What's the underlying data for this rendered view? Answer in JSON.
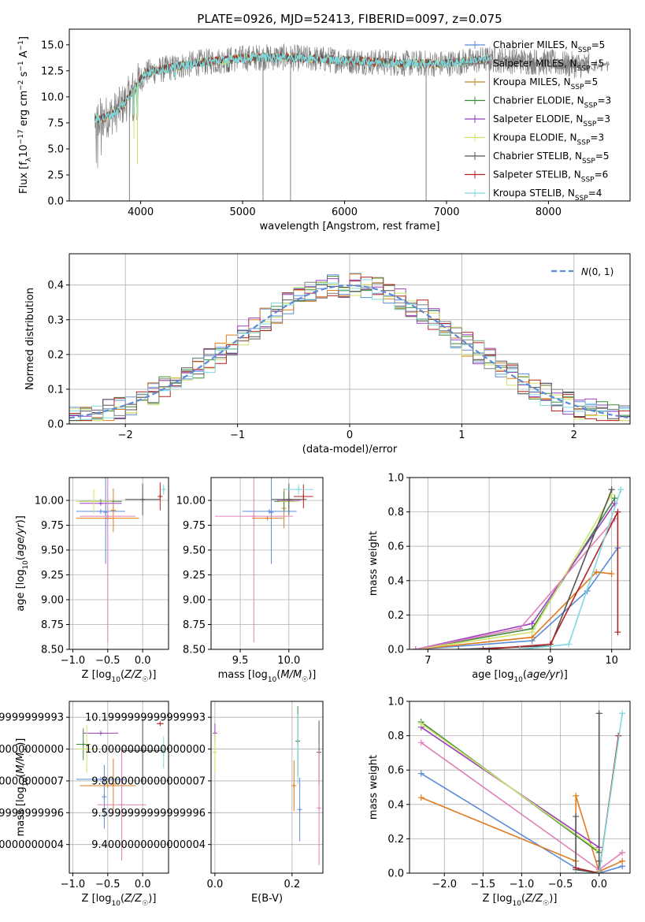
{
  "colors": {
    "blue": "#5b8bd9",
    "orange": "#e07b1f",
    "gold": "#b98a24",
    "green": "#3c8c3c",
    "purple": "#9b3ebf",
    "lime": "#cfe36a",
    "dark": "#555555",
    "red": "#b22222",
    "cyan": "#7fd8dc",
    "pink": "#e080b8",
    "gray": "#808080",
    "dashed": "#5b8bd9"
  },
  "chart_data": [
    {
      "id": "spectrum",
      "type": "line",
      "title": "PLATE=0926, MJD=52413, FIBERID=0097, z=0.075",
      "xlabel": "wavelength [Angstrom, rest frame]",
      "ylabel": "Flux [f_λ 10^-17 erg cm^-2 s^-1 A^-1]",
      "xlim": [
        3300,
        8800
      ],
      "ylim": [
        0,
        16.5
      ],
      "xticks": [
        4000,
        5000,
        6000,
        7000,
        8000
      ],
      "yticks": [
        0.0,
        2.5,
        5.0,
        7.5,
        10.0,
        12.5,
        15.0
      ],
      "legend": [
        {
          "label": "Chabrier MILES, N_SSP=5",
          "color": "blue"
        },
        {
          "label": "Salpeter MILES, N_SSP=5",
          "color": "gray"
        },
        {
          "label": "Kroupa MILES, N_SSP=5",
          "color": "gold"
        },
        {
          "label": "Chabrier ELODIE, N_SSP=3",
          "color": "green"
        },
        {
          "label": "Salpeter ELODIE, N_SSP=3",
          "color": "purple"
        },
        {
          "label": "Kroupa ELODIE, N_SSP=3",
          "color": "lime"
        },
        {
          "label": "Chabrier STELIB, N_SSP=5",
          "color": "dark"
        },
        {
          "label": "Salpeter STELIB, N_SSP=6",
          "color": "red"
        },
        {
          "label": "Kroupa STELIB, N_SSP=4",
          "color": "cyan"
        }
      ],
      "legend_position": "upper-right",
      "data_continuum": [
        [
          3550,
          7.8
        ],
        [
          3650,
          8.0
        ],
        [
          3750,
          8.5
        ],
        [
          3850,
          9.5
        ],
        [
          3950,
          11.0
        ],
        [
          4050,
          12.3
        ],
        [
          4200,
          12.6
        ],
        [
          4400,
          13.0
        ],
        [
          4600,
          13.3
        ],
        [
          4800,
          13.5
        ],
        [
          5000,
          13.7
        ],
        [
          5200,
          13.8
        ],
        [
          5400,
          13.8
        ],
        [
          5600,
          13.7
        ],
        [
          5800,
          13.6
        ],
        [
          6000,
          13.5
        ],
        [
          6200,
          13.4
        ],
        [
          6400,
          13.3
        ],
        [
          6600,
          13.2
        ],
        [
          6800,
          13.2
        ],
        [
          7000,
          13.2
        ],
        [
          7200,
          13.4
        ],
        [
          7400,
          13.6
        ],
        [
          7600,
          13.5
        ],
        [
          7800,
          13.4
        ],
        [
          8000,
          13.3
        ],
        [
          8200,
          13.1
        ],
        [
          8400,
          13.0
        ]
      ],
      "absorption_lines": [
        [
          3933,
          6.0
        ],
        [
          3968,
          3.5
        ],
        [
          3890,
          0
        ],
        [
          5200,
          0
        ],
        [
          5470,
          0
        ],
        [
          6800,
          0
        ],
        [
          7420,
          0
        ]
      ]
    },
    {
      "id": "residual-histogram",
      "type": "histogram",
      "xlabel": "(data-model)/error",
      "ylabel": "Normed distribution",
      "xlim": [
        -2.5,
        2.5
      ],
      "ylim": [
        0,
        0.49
      ],
      "xticks": [
        -2,
        -1,
        0,
        1,
        2
      ],
      "yticks": [
        0.0,
        0.1,
        0.2,
        0.3,
        0.4
      ],
      "legend": [
        {
          "label": "N(0,1)",
          "color": "dashed",
          "style": "dashed"
        }
      ],
      "legend_position": "upper-right",
      "bin_width": 0.1,
      "series_colors": [
        "blue",
        "orange",
        "green",
        "purple",
        "lime",
        "dark",
        "red",
        "cyan",
        "gray"
      ]
    },
    {
      "id": "age-vs-z",
      "type": "errorbar",
      "xlabel": "Z [log10(Z/Z☉)]",
      "ylabel": "age  [log10(age/yr)]",
      "xlim": [
        -1.05,
        0.37
      ],
      "ylim": [
        8.5,
        10.23
      ],
      "xticks": [
        -1.0,
        -0.5,
        0.0
      ],
      "yticks": [
        8.5,
        8.75,
        9.0,
        9.25,
        9.5,
        9.75,
        10.0
      ],
      "points": [
        {
          "x": -0.6,
          "y": 9.89,
          "xerr": 0.35,
          "yerr": 0.0,
          "color": "blue"
        },
        {
          "x": -0.53,
          "y": 9.88,
          "xerr": 0.0,
          "yerr": 0.52,
          "color": "blue"
        },
        {
          "x": -0.5,
          "y": 9.82,
          "xerr": 0.45,
          "yerr": 0.0,
          "color": "orange"
        },
        {
          "x": -0.42,
          "y": 9.9,
          "xerr": 0.0,
          "yerr": 0.22,
          "color": "orange"
        },
        {
          "x": -0.6,
          "y": 9.99,
          "xerr": 0.3,
          "yerr": 0.0,
          "color": "green"
        },
        {
          "x": -0.6,
          "y": 9.97,
          "xerr": 0.3,
          "yerr": 0.0,
          "color": "purple"
        },
        {
          "x": -0.7,
          "y": 9.99,
          "xerr": 0.25,
          "yerr": 0.12,
          "color": "lime"
        },
        {
          "x": -0.5,
          "y": 9.84,
          "xerr": 0.4,
          "yerr": 1.27,
          "color": "pink"
        },
        {
          "x": 0.0,
          "y": 10.01,
          "xerr": 0.25,
          "yerr": 0.16,
          "color": "dark"
        },
        {
          "x": 0.25,
          "y": 10.04,
          "xerr": 0.02,
          "yerr": 0.14,
          "color": "red"
        },
        {
          "x": 0.3,
          "y": 10.11,
          "xerr": 0.02,
          "yerr": 0.05,
          "color": "cyan"
        }
      ]
    },
    {
      "id": "age-vs-mass",
      "type": "errorbar",
      "xlabel": "mass [log10(M/M☉)]",
      "ylabel": "",
      "xlim": [
        9.2,
        10.35
      ],
      "ylim": [
        8.5,
        10.23
      ],
      "xticks": [
        9.5,
        10.0
      ],
      "yticks": [
        8.5,
        8.75,
        9.0,
        9.25,
        9.5,
        9.75,
        10.0
      ],
      "points": [
        {
          "x": 9.8,
          "y": 9.89,
          "xerr": 0.28,
          "yerr": 0.0,
          "color": "blue"
        },
        {
          "x": 9.82,
          "y": 9.88,
          "xerr": 0.0,
          "yerr": 0.52,
          "color": "blue"
        },
        {
          "x": 9.78,
          "y": 9.82,
          "xerr": 0.16,
          "yerr": 0.0,
          "color": "orange"
        },
        {
          "x": 9.95,
          "y": 9.92,
          "xerr": 0.0,
          "yerr": 0.2,
          "color": "orange"
        },
        {
          "x": 9.95,
          "y": 9.99,
          "xerr": 0.1,
          "yerr": 0.1,
          "color": "green"
        },
        {
          "x": 10.0,
          "y": 10.0,
          "xerr": 0.12,
          "yerr": 0.08,
          "color": "purple"
        },
        {
          "x": 10.0,
          "y": 9.99,
          "xerr": 0.1,
          "yerr": 0.1,
          "color": "lime"
        },
        {
          "x": 9.64,
          "y": 9.84,
          "xerr": 0.4,
          "yerr": 1.27,
          "color": "pink"
        },
        {
          "x": 10.0,
          "y": 10.01,
          "xerr": 0.18,
          "yerr": 0.16,
          "color": "dark"
        },
        {
          "x": 10.15,
          "y": 10.04,
          "xerr": 0.1,
          "yerr": 0.12,
          "color": "red"
        },
        {
          "x": 10.1,
          "y": 10.11,
          "xerr": 0.15,
          "yerr": 0.05,
          "color": "cyan"
        }
      ]
    },
    {
      "id": "mass-weight-vs-age",
      "type": "line",
      "xlabel": "age  [log10(age/yr)]",
      "ylabel": "mass weight",
      "xlim": [
        6.7,
        10.3
      ],
      "ylim": [
        0,
        1.0
      ],
      "xticks": [
        7,
        8,
        9,
        10
      ],
      "yticks": [
        0.0,
        0.2,
        0.4,
        0.6,
        0.8,
        1.0
      ],
      "series": [
        {
          "color": "blue",
          "x": [
            6.8,
            8.7,
            9.6,
            10.1
          ],
          "y": [
            0.0,
            0.05,
            0.34,
            0.59
          ]
        },
        {
          "color": "orange",
          "x": [
            6.8,
            8.7,
            9.75,
            10.0
          ],
          "y": [
            0.0,
            0.07,
            0.45,
            0.44
          ]
        },
        {
          "color": "green",
          "x": [
            6.8,
            8.7,
            10.05
          ],
          "y": [
            0.0,
            0.12,
            0.88
          ]
        },
        {
          "color": "purple",
          "x": [
            6.8,
            8.7,
            10.05
          ],
          "y": [
            0.0,
            0.15,
            0.85
          ]
        },
        {
          "color": "lime",
          "x": [
            6.8,
            8.7,
            10.0
          ],
          "y": [
            0.0,
            0.1,
            0.9
          ]
        },
        {
          "color": "pink",
          "x": [
            6.8,
            8.5,
            10.05
          ],
          "y": [
            0.0,
            0.12,
            0.76
          ]
        },
        {
          "color": "dark",
          "x": [
            7.5,
            9.0,
            10.0
          ],
          "y": [
            0.0,
            0.02,
            0.93
          ]
        },
        {
          "color": "red",
          "x": [
            7.9,
            9.0,
            10.1,
            10.1
          ],
          "y": [
            0.0,
            0.03,
            0.8,
            0.1
          ]
        },
        {
          "color": "cyan",
          "x": [
            8.5,
            9.3,
            10.15
          ],
          "y": [
            0.0,
            0.03,
            0.93
          ]
        }
      ]
    },
    {
      "id": "mass-vs-z",
      "type": "errorbar",
      "xlabel": "Z [log10(Z/Z☉)]",
      "ylabel": "mass [log10(M/M☉)]",
      "xlim": [
        -1.05,
        0.37
      ],
      "ylim": [
        9.22,
        10.3
      ],
      "xticks": [
        -1.0,
        -0.5,
        0.0
      ],
      "yticks": [
        9.4,
        9.6,
        9.8,
        10.0,
        10.2
      ],
      "points": [
        {
          "x": -0.6,
          "y": 9.81,
          "xerr": 0.35,
          "yerr": 0.0,
          "color": "blue"
        },
        {
          "x": -0.55,
          "y": 9.7,
          "xerr": 0.0,
          "yerr": 0.2,
          "color": "blue"
        },
        {
          "x": -0.5,
          "y": 9.77,
          "xerr": 0.4,
          "yerr": 0.0,
          "color": "orange"
        },
        {
          "x": -0.42,
          "y": 9.78,
          "xerr": 0.0,
          "yerr": 0.16,
          "color": "orange"
        },
        {
          "x": -0.85,
          "y": 10.03,
          "xerr": 0.1,
          "yerr": 0.1,
          "color": "green"
        },
        {
          "x": -0.6,
          "y": 10.1,
          "xerr": 0.25,
          "yerr": 0.0,
          "color": "purple"
        },
        {
          "x": -0.8,
          "y": 10.0,
          "xerr": 0.15,
          "yerr": 0.15,
          "color": "lime"
        },
        {
          "x": -0.3,
          "y": 9.65,
          "xerr": 0.35,
          "yerr": 0.35,
          "color": "pink"
        },
        {
          "x": 0.0,
          "y": 9.99,
          "xerr": 0.3,
          "yerr": 0.2,
          "color": "dark"
        },
        {
          "x": 0.25,
          "y": 10.16,
          "xerr": 0.05,
          "yerr": 0.0,
          "color": "red"
        },
        {
          "x": 0.3,
          "y": 9.98,
          "xerr": 0.02,
          "yerr": 0.1,
          "color": "cyan"
        }
      ]
    },
    {
      "id": "mass-vs-ebv",
      "type": "errorbar",
      "xlabel": "E(B-V)",
      "ylabel": "",
      "xlim": [
        -0.01,
        0.28
      ],
      "ylim": [
        9.22,
        10.3
      ],
      "xticks": [
        0.0,
        0.2
      ],
      "yticks": [
        9.4,
        9.6,
        9.8,
        10.0,
        10.2
      ],
      "points": [
        {
          "x": 0.0,
          "y": 10.1,
          "xerr": 0.0,
          "yerr": 0.06,
          "color": "purple"
        },
        {
          "x": 0.0,
          "y": 9.98,
          "xerr": 0.0,
          "yerr": 0.12,
          "color": "lime"
        },
        {
          "x": 0.205,
          "y": 9.77,
          "xerr": 0.0,
          "yerr": 0.16,
          "color": "orange"
        },
        {
          "x": 0.215,
          "y": 10.05,
          "xerr": 0.0,
          "yerr": 0.22,
          "color": "green"
        },
        {
          "x": 0.215,
          "y": 10.0,
          "xerr": 0.0,
          "yerr": 0.22,
          "color": "cyan"
        },
        {
          "x": 0.22,
          "y": 9.62,
          "xerr": 0.0,
          "yerr": 0.2,
          "color": "blue"
        },
        {
          "x": 0.27,
          "y": 9.98,
          "xerr": 0.0,
          "yerr": 0.2,
          "color": "dark"
        },
        {
          "x": 0.27,
          "y": 9.63,
          "xerr": 0.0,
          "yerr": 0.36,
          "color": "pink"
        }
      ]
    },
    {
      "id": "mass-weight-vs-z",
      "type": "line",
      "xlabel": "Z [log10(Z/Z☉)]",
      "ylabel": "mass weight",
      "xlim": [
        -2.45,
        0.4
      ],
      "ylim": [
        0,
        1.0
      ],
      "xticks": [
        -2.0,
        -1.5,
        -1.0,
        -0.5,
        0.0
      ],
      "yticks": [
        0.0,
        0.2,
        0.4,
        0.6,
        0.8,
        1.0
      ],
      "series": [
        {
          "color": "blue",
          "x": [
            -2.3,
            -0.3,
            0.0,
            0.3
          ],
          "y": [
            0.58,
            0.03,
            0.0,
            0.04
          ]
        },
        {
          "color": "orange",
          "x": [
            -2.3,
            -0.3,
            -0.3,
            0.0,
            0.3
          ],
          "y": [
            0.44,
            0.07,
            0.45,
            0.01,
            0.07
          ]
        },
        {
          "color": "green",
          "x": [
            -2.3,
            0.0
          ],
          "y": [
            0.88,
            0.12
          ]
        },
        {
          "color": "purple",
          "x": [
            -2.3,
            0.0
          ],
          "y": [
            0.85,
            0.15
          ]
        },
        {
          "color": "lime",
          "x": [
            -2.3,
            0.0
          ],
          "y": [
            0.87,
            0.13
          ]
        },
        {
          "color": "pink",
          "x": [
            -2.3,
            0.0,
            0.3
          ],
          "y": [
            0.76,
            0.02,
            0.12
          ]
        },
        {
          "color": "dark",
          "x": [
            -0.3,
            -0.3,
            0.0,
            0.0,
            0.0
          ],
          "y": [
            0.33,
            0.02,
            0.0,
            0.93,
            0.07
          ]
        },
        {
          "color": "red",
          "x": [
            -0.3,
            0.0,
            0.25
          ],
          "y": [
            0.03,
            0.0,
            0.8
          ]
        },
        {
          "color": "cyan",
          "x": [
            -0.3,
            0.0,
            0.3
          ],
          "y": [
            0.0,
            0.0,
            0.93
          ]
        }
      ]
    }
  ]
}
